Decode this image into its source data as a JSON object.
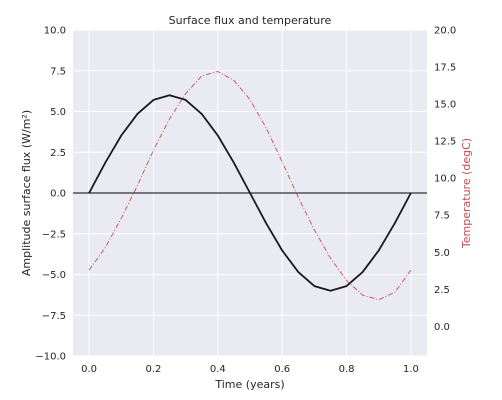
{
  "chart_data": {
    "type": "line",
    "title": "Surface flux and temperature",
    "xlabel": "Time (years)",
    "ylabel": "Amplitude surface flux (W/m²)",
    "ylabel_right": "Temperature (degC)",
    "xlim": [
      -0.05,
      1.05
    ],
    "ylim": [
      -10,
      10
    ],
    "ylim_right": [
      -2,
      20
    ],
    "x_ticks": [
      0.0,
      0.2,
      0.4,
      0.6,
      0.8,
      1.0
    ],
    "x_tick_labels": [
      "0.0",
      "0.2",
      "0.4",
      "0.6",
      "0.8",
      "1.0"
    ],
    "y_ticks": [
      -10,
      -7.5,
      -5,
      -2.5,
      0,
      2.5,
      5,
      7.5,
      10
    ],
    "y_tick_labels": [
      "−10.0",
      "−7.5",
      "−5.0",
      "−2.5",
      "0.0",
      "2.5",
      "5.0",
      "7.5",
      "10.0"
    ],
    "y_ticks_right": [
      0,
      2.5,
      5,
      7.5,
      10,
      12.5,
      15,
      17.5,
      20
    ],
    "y_tick_labels_right": [
      "0.0",
      "2.5",
      "5.0",
      "7.5",
      "10.0",
      "12.5",
      "15.0",
      "17.5",
      "20.0"
    ],
    "grid": true,
    "zero_line": 0,
    "series": [
      {
        "axis": "left",
        "color": "#1a1a1a",
        "style": "solid",
        "x": [
          0.0,
          0.05,
          0.1,
          0.15,
          0.2,
          0.25,
          0.3,
          0.35,
          0.4,
          0.45,
          0.5,
          0.55,
          0.6,
          0.65,
          0.7,
          0.75,
          0.8,
          0.85,
          0.9,
          0.95,
          1.0
        ],
        "values": [
          0.0,
          1.85,
          3.53,
          4.85,
          5.71,
          6.0,
          5.71,
          4.85,
          3.53,
          1.85,
          0.0,
          -1.85,
          -3.53,
          -4.85,
          -5.71,
          -6.0,
          -5.71,
          -4.85,
          -3.53,
          -1.85,
          0.0
        ]
      },
      {
        "axis": "right",
        "color": "#c44e52",
        "style": "dashdot",
        "x": [
          0.0,
          0.05,
          0.1,
          0.15,
          0.2,
          0.25,
          0.3,
          0.35,
          0.4,
          0.45,
          0.5,
          0.55,
          0.6,
          0.65,
          0.7,
          0.75,
          0.8,
          0.85,
          0.9,
          0.95,
          1.0
        ],
        "values": [
          3.8,
          5.3,
          7.3,
          9.5,
          11.9,
          14.0,
          15.7,
          16.9,
          17.2,
          16.6,
          15.3,
          13.4,
          11.1,
          8.7,
          6.5,
          4.6,
          3.1,
          2.1,
          1.8,
          2.3,
          3.8
        ]
      }
    ]
  }
}
